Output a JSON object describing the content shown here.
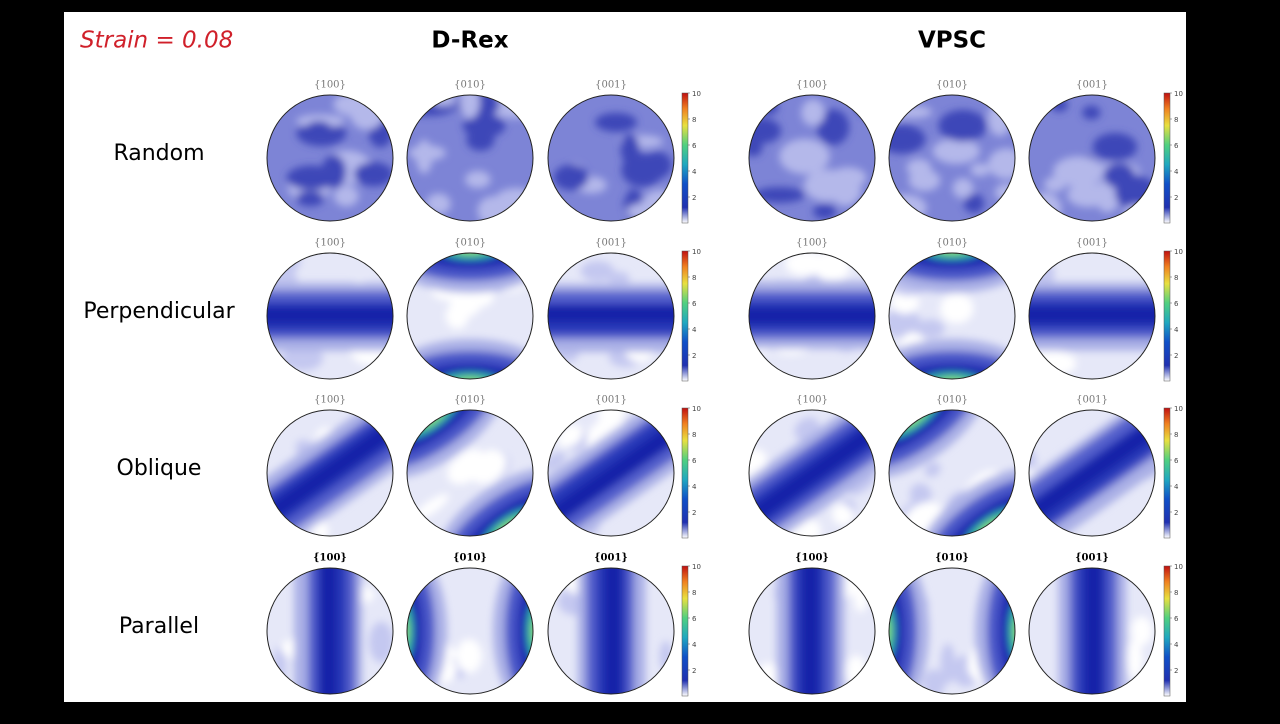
{
  "header": {
    "strain": "Strain = 0.08",
    "groups": [
      "D-Rex",
      "VPSC"
    ]
  },
  "rows": [
    "Random",
    "Perpendicular",
    "Oblique",
    "Parallel"
  ],
  "pole_labels": [
    "{100}",
    "{010}",
    "{001}"
  ],
  "colorbar_ticks": [
    2,
    4,
    6,
    8,
    10
  ]
}
